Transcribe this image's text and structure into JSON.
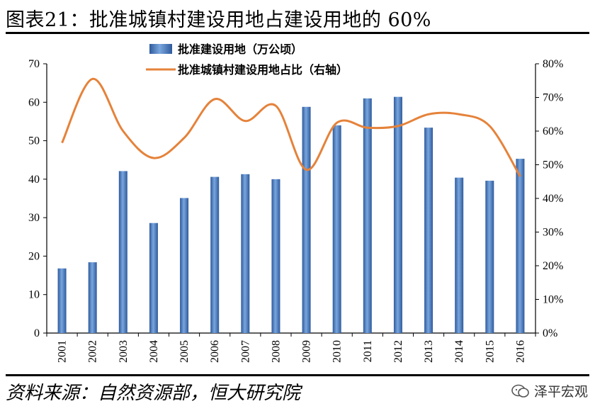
{
  "header": {
    "title": "图表21：批准城镇村建设用地占建设用地的 60%"
  },
  "footer": {
    "source": "资料来源：自然资源部，恒大研究院",
    "watermark": "泽平宏观"
  },
  "colors": {
    "bar": "#4f7fc1",
    "bar_dark": "#2e5a9c",
    "line": "#e5823a"
  },
  "chart_data": {
    "type": "bar",
    "categories": [
      "2001",
      "2002",
      "2003",
      "2004",
      "2005",
      "2006",
      "2007",
      "2008",
      "2009",
      "2010",
      "2011",
      "2012",
      "2013",
      "2014",
      "2015",
      "2016"
    ],
    "series": [
      {
        "name": "批准建设用地（万公顷）",
        "type": "bar",
        "axis": "left",
        "values": [
          16.8,
          18.4,
          42.1,
          28.6,
          35.1,
          40.6,
          41.3,
          40.0,
          58.8,
          54.0,
          61.0,
          61.4,
          53.4,
          40.4,
          39.6,
          45.3
        ]
      },
      {
        "name": "批准城镇村建设用地占比（右轴）",
        "type": "line",
        "axis": "right",
        "values": [
          56.5,
          75.5,
          60.0,
          52.0,
          58.0,
          69.5,
          63.0,
          67.5,
          48.5,
          62.5,
          61.0,
          61.5,
          65.0,
          65.0,
          61.5,
          46.5
        ]
      }
    ],
    "left_axis": {
      "min": 0,
      "max": 70,
      "step": 10,
      "ticks": [
        "0",
        "10",
        "20",
        "30",
        "40",
        "50",
        "60",
        "70"
      ]
    },
    "right_axis": {
      "min": 0,
      "max": 80,
      "step": 10,
      "ticks": [
        "0%",
        "10%",
        "20%",
        "30%",
        "40%",
        "50%",
        "60%",
        "70%",
        "80%"
      ]
    },
    "grid": false,
    "legend_position": "top-center"
  }
}
